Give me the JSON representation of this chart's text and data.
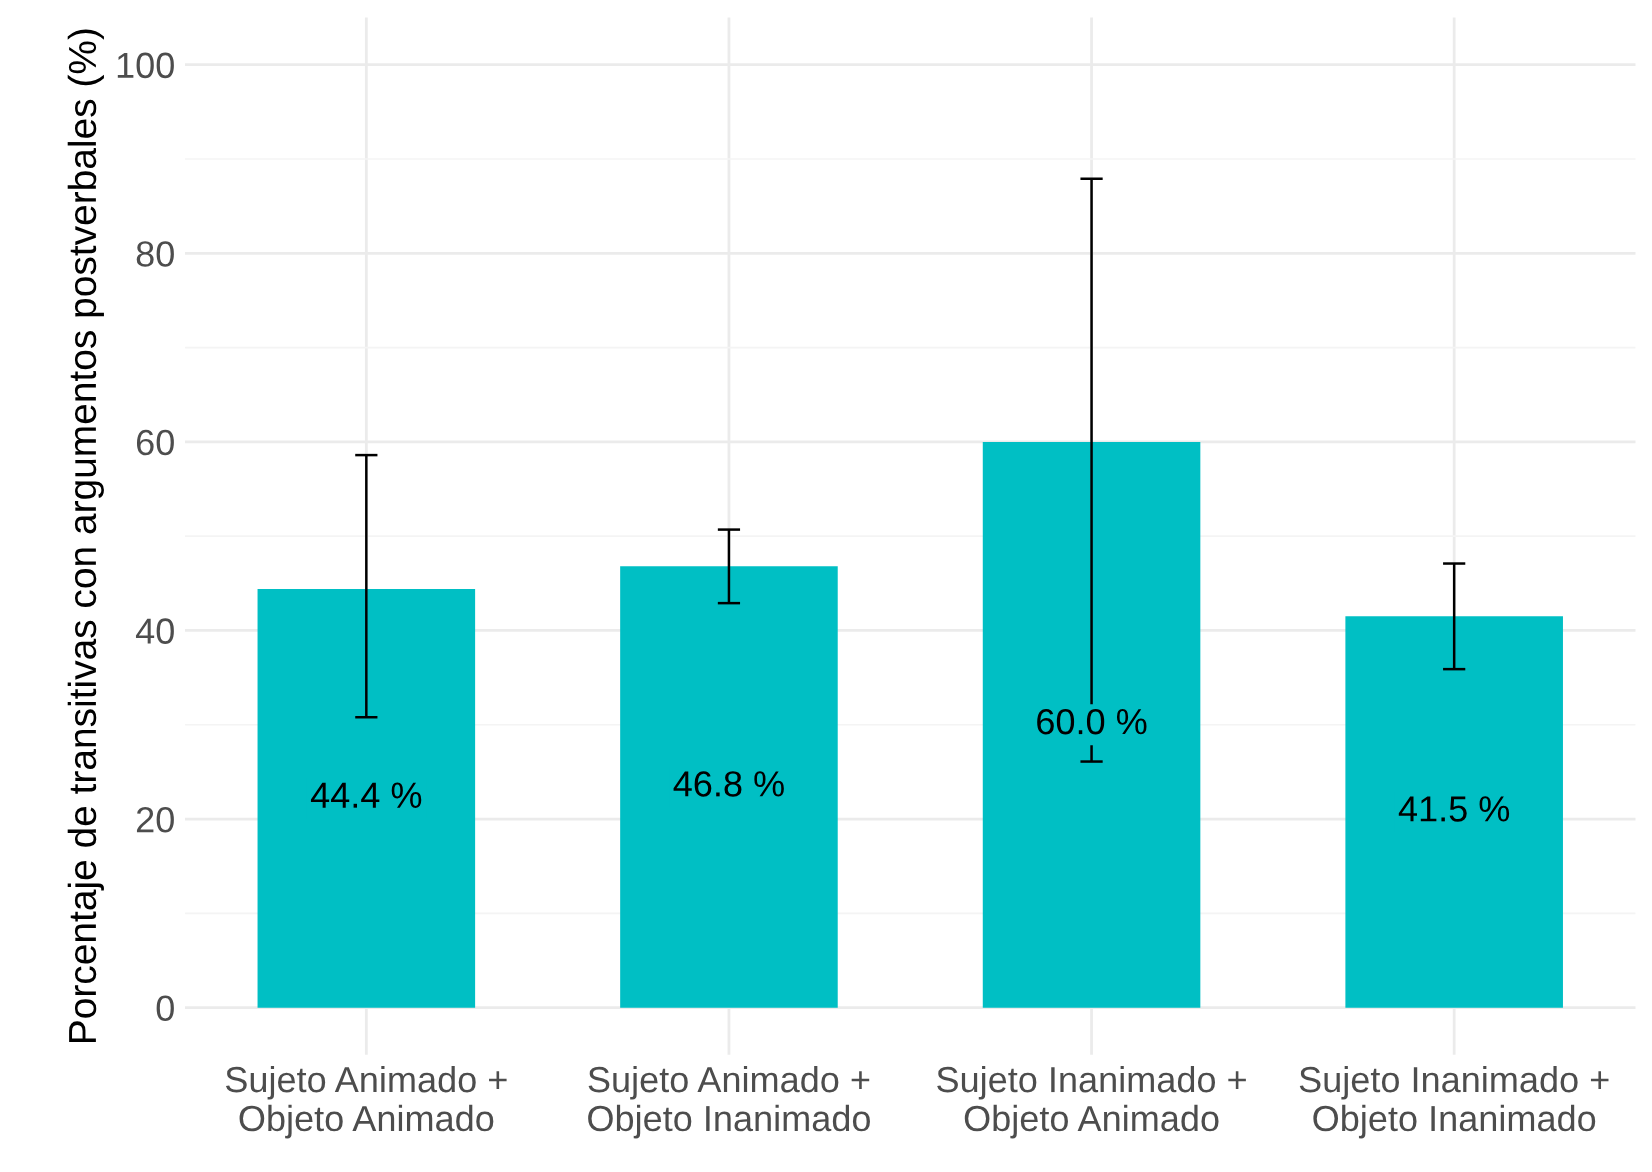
{
  "chart_data": {
    "type": "bar",
    "ylabel": "Porcentaje de transitivas con argumentos postverbales (%)",
    "categories": [
      "Sujeto Animado +\nObjeto Animado",
      "Sujeto Animado +\nObjeto Inanimado",
      "Sujeto Inanimado +\nObjeto Animado",
      "Sujeto Inanimado +\nObjeto Inanimado"
    ],
    "values": [
      44.4,
      46.8,
      60.0,
      41.5
    ],
    "errors": [
      [
        30.8,
        58.6
      ],
      [
        42.9,
        50.7
      ],
      [
        26.1,
        87.9
      ],
      [
        35.9,
        47.1
      ]
    ],
    "value_labels": [
      "44.4 %",
      "46.8 %",
      "60.0 %",
      "41.5 %"
    ],
    "color": "#00bfc4",
    "ylim": [
      -5,
      105
    ],
    "yticks": [
      0,
      20,
      40,
      60,
      80,
      100
    ],
    "grid": true
  }
}
